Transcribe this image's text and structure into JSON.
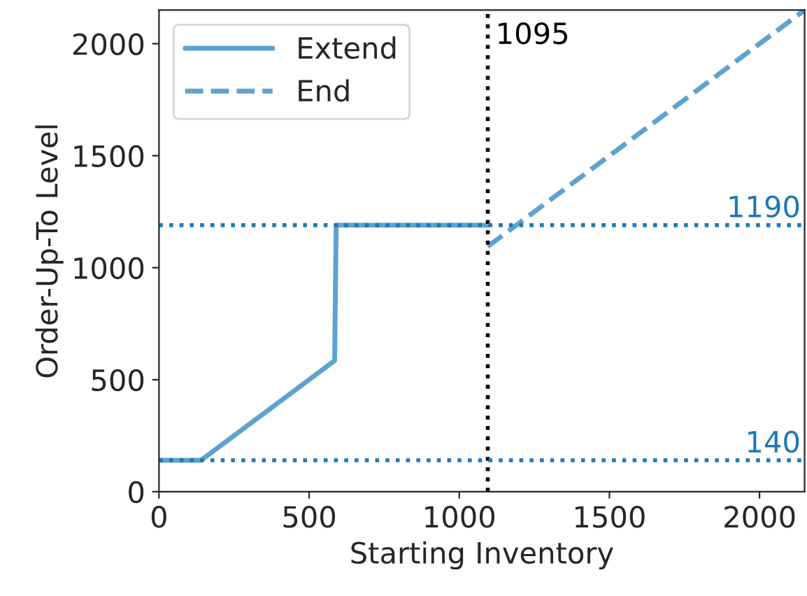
{
  "chart_data": {
    "type": "line",
    "xlabel": "Starting Inventory",
    "ylabel": "Order-Up-To Level",
    "series": [
      {
        "name": "Extend",
        "color": "#5fa2ce",
        "x": [
          0,
          140,
          585,
          590,
          1095
        ],
        "values": [
          140,
          140,
          585,
          1190,
          1190
        ],
        "line_style": "solid"
      },
      {
        "name": "End",
        "color": "#5fa2ce",
        "x": [
          1095,
          2150
        ],
        "values": [
          1095,
          2150
        ],
        "line_style": "dashed"
      }
    ],
    "xlim": [
      0,
      2150
    ],
    "ylim": [
      0,
      2150
    ],
    "xticks": [
      0,
      500,
      1000,
      1500,
      2000
    ],
    "yticks": [
      0,
      500,
      1000,
      1500,
      2000
    ],
    "ref_lines": [
      {
        "axis": "x",
        "value": 1095,
        "label": "1095",
        "color": "#000000",
        "line_style": "dotted"
      },
      {
        "axis": "y",
        "value": 1190,
        "label": "1190",
        "color": "#1f77b4",
        "line_style": "dotted"
      },
      {
        "axis": "y",
        "value": 140,
        "label": "140",
        "color": "#1f77b4",
        "line_style": "dotted"
      }
    ],
    "legend": "top left",
    "grid": false,
    "marker": "none"
  }
}
